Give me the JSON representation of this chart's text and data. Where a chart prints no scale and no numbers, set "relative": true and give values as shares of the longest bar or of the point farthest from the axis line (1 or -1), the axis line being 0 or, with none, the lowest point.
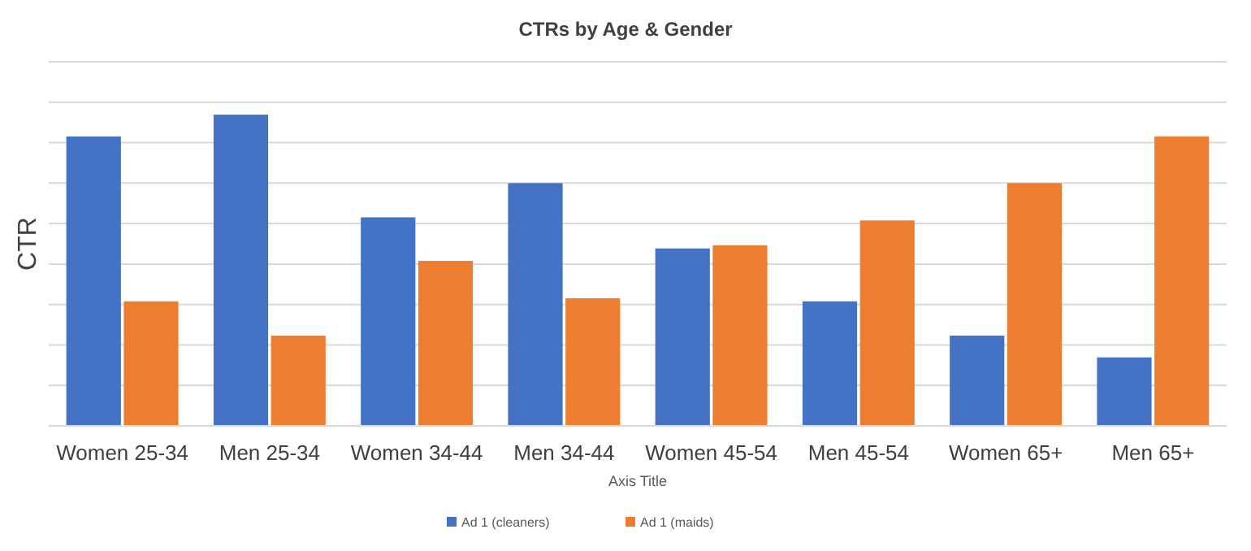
{
  "chart_data": {
    "type": "bar",
    "title": "CTRs by Age & Gender",
    "xlabel": "Axis Title",
    "ylabel": "CTR",
    "relative": true,
    "grid": "y",
    "legend": "bottom",
    "categories": [
      "Women 25-34",
      "Men 25-34",
      "Women 34-44",
      "Men 34-44",
      "Women 45-54",
      "Men 45-54",
      "Women 65+",
      "Men 65+"
    ],
    "series": [
      {
        "name": "Ad 1 (cleaners)",
        "color": "#4472c4",
        "values": [
          0.93,
          1,
          0.67,
          0.78,
          0.57,
          0.4,
          0.29,
          0.22
        ]
      },
      {
        "name": "Ad 1 (maids)",
        "color": "#ed7d31",
        "values": [
          0.4,
          0.29,
          0.53,
          0.41,
          0.58,
          0.66,
          0.78,
          0.93
        ]
      }
    ]
  }
}
